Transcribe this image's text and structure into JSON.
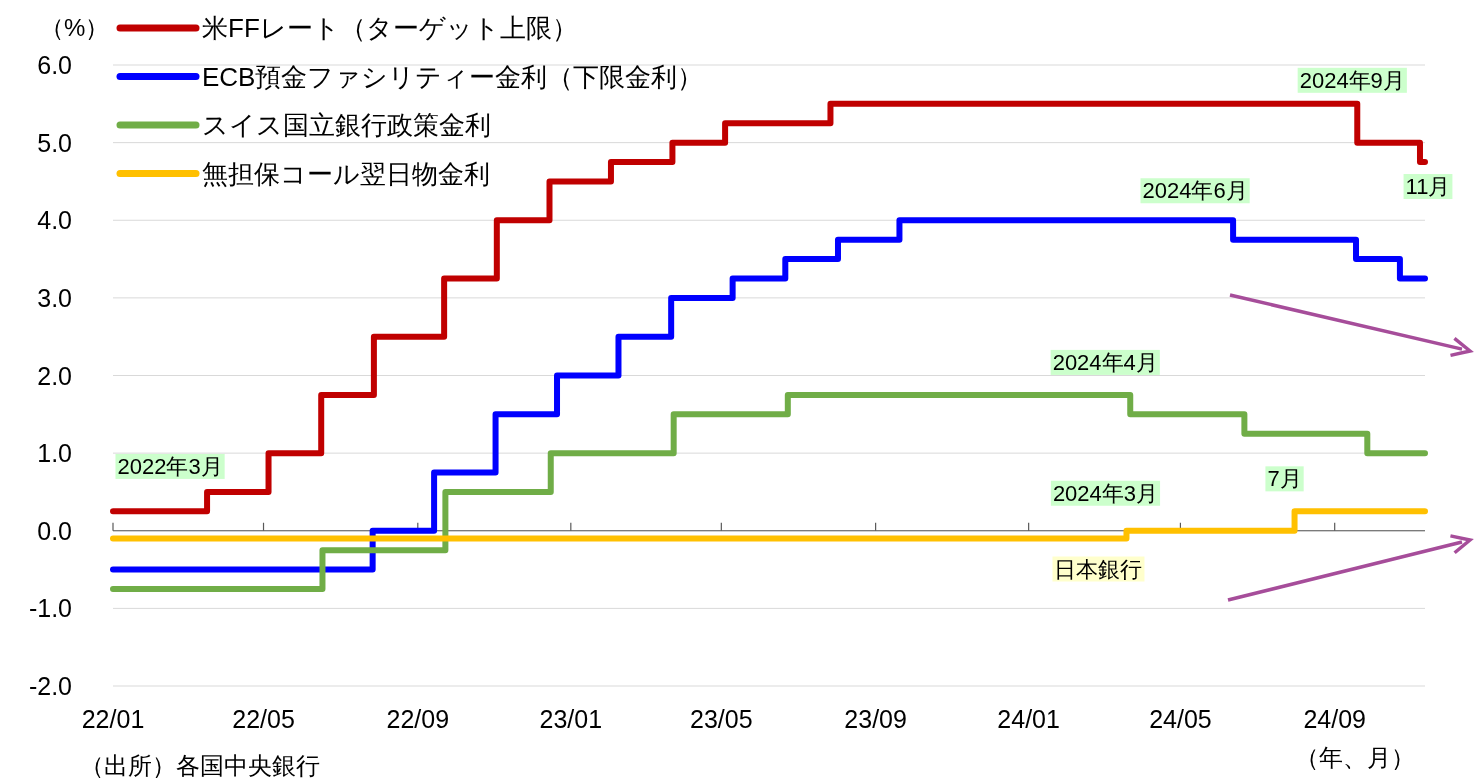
{
  "chart_data": {
    "type": "step",
    "ylabel": "（%）",
    "xlabel": "（年、月）",
    "xlim": [
      "2022-01-01",
      "2024-11-12"
    ],
    "ylim": [
      -2,
      6
    ],
    "xticks": [
      {
        "value": "2022-01-01",
        "label": "22/01"
      },
      {
        "value": "2022-05-01",
        "label": "22/05"
      },
      {
        "value": "2022-09-01",
        "label": "22/09"
      },
      {
        "value": "2023-01-01",
        "label": "23/01"
      },
      {
        "value": "2023-05-01",
        "label": "23/05"
      },
      {
        "value": "2023-09-01",
        "label": "23/09"
      },
      {
        "value": "2024-01-01",
        "label": "24/01"
      },
      {
        "value": "2024-05-01",
        "label": "24/05"
      },
      {
        "value": "2024-09-01",
        "label": "24/09"
      }
    ],
    "yticks": [
      {
        "value": -2,
        "label": "-2.0"
      },
      {
        "value": -1,
        "label": "-1.0"
      },
      {
        "value": 0,
        "label": "0.0"
      },
      {
        "value": 1,
        "label": "1.0"
      },
      {
        "value": 2,
        "label": "2.0"
      },
      {
        "value": 3,
        "label": "3.0"
      },
      {
        "value": 4,
        "label": "4.0"
      },
      {
        "value": 5,
        "label": "5.0"
      },
      {
        "value": 6,
        "label": "6.0"
      }
    ],
    "grid": "y",
    "legend": "top left",
    "line_style": "solid",
    "marker": "none",
    "series": [
      {
        "name": "米FFレート（ターゲット上限）",
        "color": "#c00000",
        "x": [
          "2022-01-01",
          "2022-03-17",
          "2022-05-05",
          "2022-06-16",
          "2022-07-28",
          "2022-09-22",
          "2022-11-03",
          "2022-12-15",
          "2023-02-02",
          "2023-03-23",
          "2023-05-04",
          "2023-07-27",
          "2024-09-19",
          "2024-11-08",
          "2024-11-12"
        ],
        "values": [
          0.25,
          0.5,
          1.0,
          1.75,
          2.5,
          3.25,
          4.0,
          4.5,
          4.75,
          5.0,
          5.25,
          5.5,
          5.0,
          4.75,
          4.75
        ]
      },
      {
        "name": "ECB預金ファシリティー金利（下限金利）",
        "color": "#0000ff",
        "x": [
          "2022-01-01",
          "2022-07-27",
          "2022-09-14",
          "2022-11-02",
          "2022-12-21",
          "2023-02-08",
          "2023-03-22",
          "2023-05-10",
          "2023-06-21",
          "2023-08-02",
          "2023-09-20",
          "2024-06-12",
          "2024-09-18",
          "2024-10-23",
          "2024-11-12"
        ],
        "values": [
          -0.5,
          0.0,
          0.75,
          1.5,
          2.0,
          2.5,
          3.0,
          3.25,
          3.5,
          3.75,
          4.0,
          3.75,
          3.5,
          3.25,
          3.25
        ]
      },
      {
        "name": "スイス国立銀行政策金利",
        "color": "#70ad47",
        "x": [
          "2022-01-01",
          "2022-06-17",
          "2022-09-23",
          "2022-12-16",
          "2023-03-24",
          "2023-06-23",
          "2024-03-22",
          "2024-06-21",
          "2024-09-27",
          "2024-11-12"
        ],
        "values": [
          -0.75,
          -0.25,
          0.5,
          1.0,
          1.5,
          1.75,
          1.5,
          1.25,
          1.0,
          1.0
        ]
      },
      {
        "name": "無担保コール翌日物金利",
        "color": "#ffc000",
        "x": [
          "2022-01-01",
          "2024-03-19",
          "2024-07-31",
          "2024-11-12"
        ],
        "values": [
          -0.1,
          0.0,
          0.25,
          0.25
        ]
      }
    ],
    "annotations": [
      {
        "text": "2022年3月",
        "x": "2022-03-17",
        "y": 0.5
      },
      {
        "text": "2024年9月",
        "x": "2024-09-19",
        "y": 5.5
      },
      {
        "text": "11月",
        "x": "2024-11-08",
        "y": 4.75
      },
      {
        "text": "2024年6月",
        "x": "2024-06-12",
        "y": 4.0
      },
      {
        "text": "2024年4月",
        "x": "2024-03-22",
        "y": 1.75
      },
      {
        "text": "2024年3月",
        "x": "2024-03-19",
        "y": 0.0
      },
      {
        "text": "7月",
        "x": "2024-07-31",
        "y": 0.25
      },
      {
        "text": "日本銀行",
        "x": "2024-03-19",
        "y": -0.1
      },
      "（出所）各国中央銀行"
    ]
  }
}
